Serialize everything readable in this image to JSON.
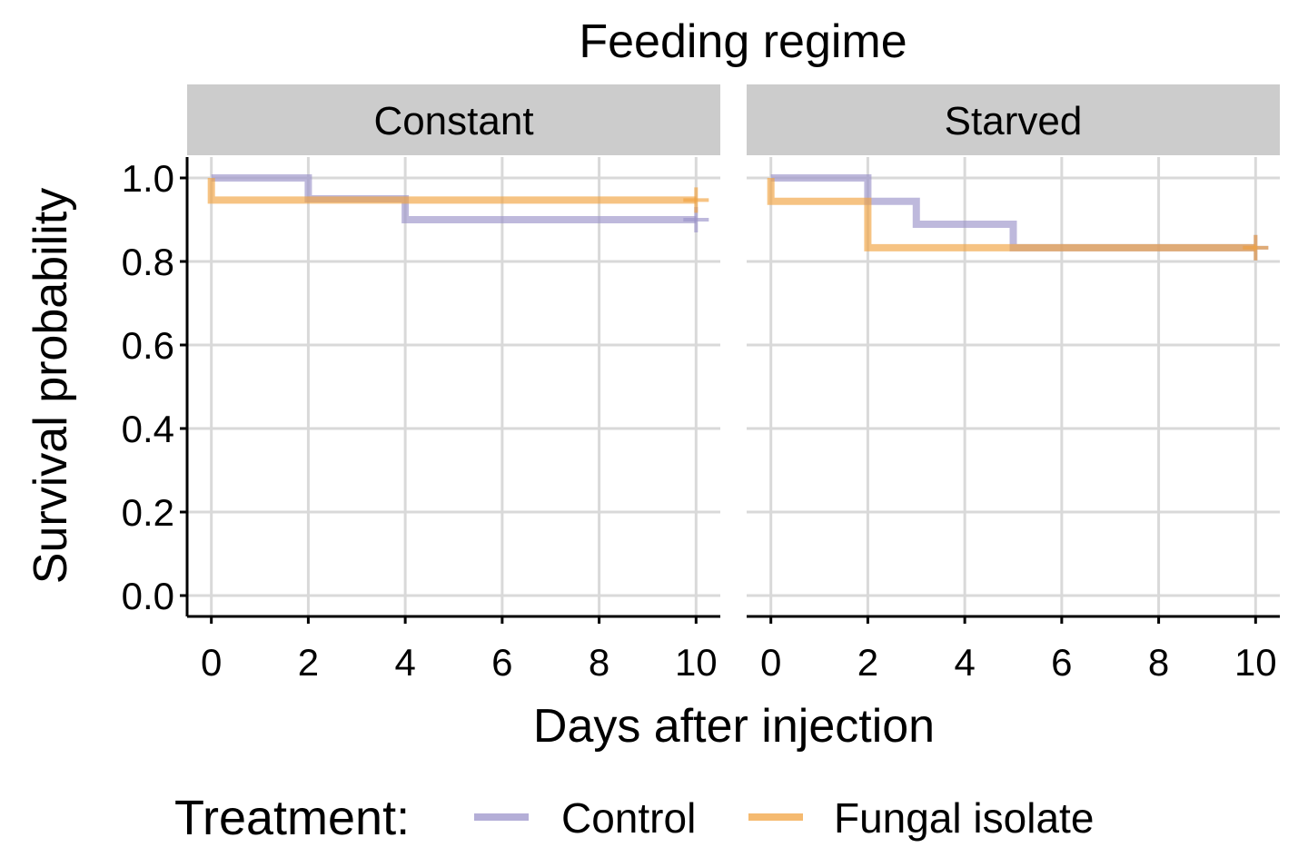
{
  "chart_data": {
    "type": "line",
    "step": true,
    "title": "Feeding regime",
    "xlabel": "Days after injection",
    "ylabel": "Survival probability",
    "xlim": [
      -0.5,
      10.5
    ],
    "ylim": [
      -0.05,
      1.05
    ],
    "x_ticks": [
      0,
      2,
      4,
      6,
      8,
      10
    ],
    "y_ticks": [
      0.0,
      0.2,
      0.4,
      0.6,
      0.8,
      1.0
    ],
    "x_tick_labels": [
      "0",
      "2",
      "4",
      "6",
      "8",
      "10"
    ],
    "y_tick_labels": [
      "0.0",
      "0.2",
      "0.4",
      "0.6",
      "0.8",
      "1.0"
    ],
    "grid": true,
    "legend": {
      "title": "Treatment:",
      "position": "bottom",
      "entries": [
        {
          "label": "Control",
          "color": "#9b93c9"
        },
        {
          "label": "Fungal isolate",
          "color": "#f1a340"
        }
      ]
    },
    "panels": [
      {
        "strip": "Constant",
        "series": [
          {
            "name": "Control",
            "color": "#9b93c9",
            "x": [
              0,
              2,
              4,
              10
            ],
            "y": [
              1.0,
              0.95,
              0.9,
              0.9
            ],
            "censor": [
              [
                10,
                0.9
              ]
            ]
          },
          {
            "name": "Fungal isolate",
            "color": "#f1a340",
            "x": [
              0,
              0,
              10
            ],
            "y": [
              1.0,
              0.947,
              0.947
            ],
            "censor": [
              [
                10,
                0.947
              ]
            ]
          }
        ]
      },
      {
        "strip": "Starved",
        "series": [
          {
            "name": "Control",
            "color": "#9b93c9",
            "x": [
              0,
              2,
              3,
              5,
              10
            ],
            "y": [
              1.0,
              0.944,
              0.889,
              0.833,
              0.833
            ],
            "censor": [
              [
                10,
                0.833
              ]
            ]
          },
          {
            "name": "Fungal isolate",
            "color": "#f1a340",
            "x": [
              0,
              0,
              2,
              10
            ],
            "y": [
              1.0,
              0.944,
              0.833,
              0.833
            ],
            "censor": [
              [
                10,
                0.833
              ]
            ]
          }
        ]
      }
    ]
  }
}
